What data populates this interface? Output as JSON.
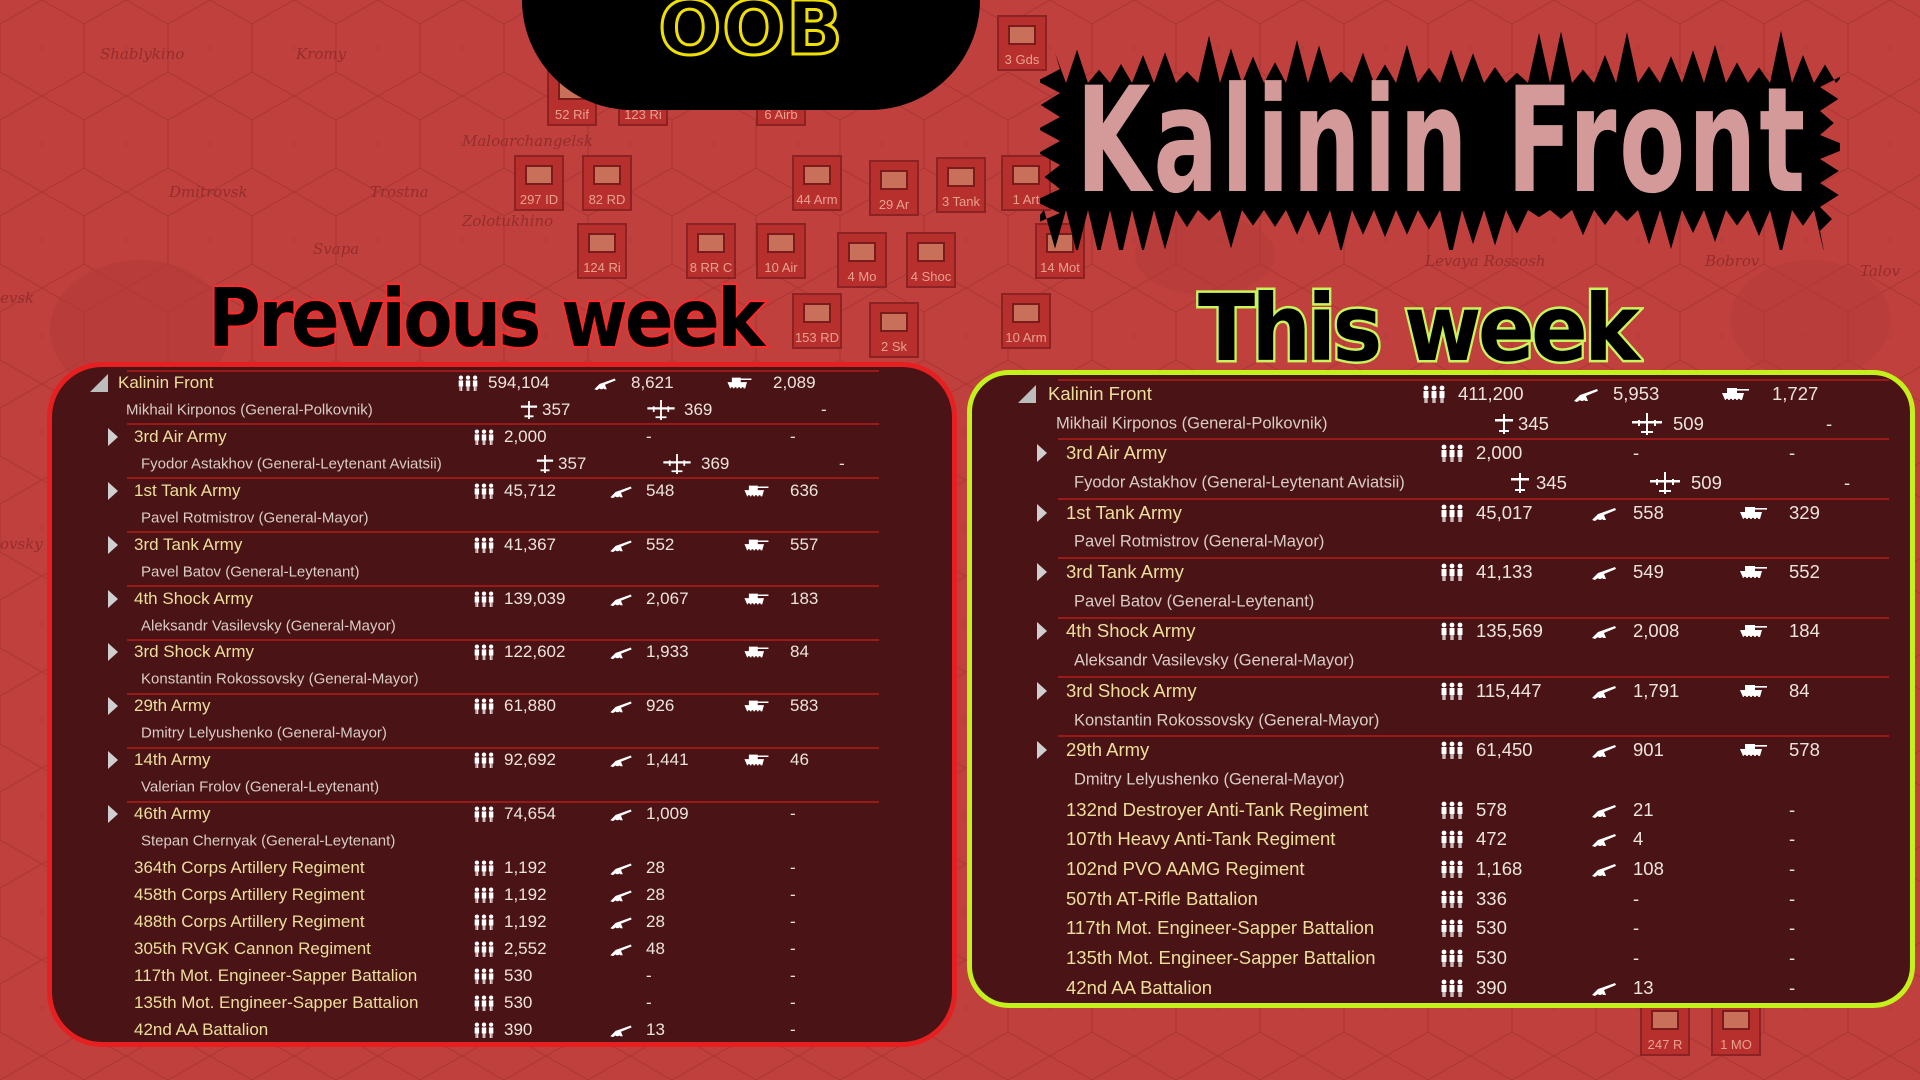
{
  "header": {
    "tab_label": "OOB",
    "title": "Kalinin Front"
  },
  "map": {
    "places": [
      "Shablykino",
      "Kromy",
      "Maloarchangelsk",
      "Dmitrovsk",
      "Trostna",
      "Zolotukhino",
      "Svapa",
      "evsk",
      "ovsky",
      "Levaya Rossosh",
      "Bobrov",
      "Talov"
    ],
    "counters": [
      "52 Rif",
      "123 Ri",
      "6 Airb",
      "3 Gds",
      "44 Arm",
      "29 Ar",
      "3 Tank",
      "1 Art",
      "297 ID",
      "82 RD",
      "124 Ri",
      "8 RR C",
      "10 Air",
      "4 Mo",
      "4 Shoc",
      "14 Mot",
      "153 RD",
      "2 Sk",
      "10 Arm",
      "247 R",
      "1 MO"
    ]
  },
  "colors": {
    "previous_border": "#e62020",
    "current_border": "#c4f01c",
    "panel_bg": "#4a1416",
    "unit_name": "#ecdf9c",
    "map_bg": "#c0403d",
    "oob_outline": "#f0e000"
  },
  "icons": {
    "men": "soldiers-icon",
    "guns": "artillery-icon",
    "tanks": "tank-icon",
    "fighters": "fighter-plane-icon",
    "bombers": "bomber-plane-icon",
    "expand": "expand-triangle-icon"
  },
  "panels": {
    "previous": {
      "label": "Previous week",
      "front": {
        "name": "Kalinin Front",
        "men": "594,104",
        "guns": "8,621",
        "tanks": "2,089",
        "leader": "Mikhail Kirponos  (General-Polkovnik)",
        "fighters": "357",
        "bombers": "369",
        "other": "-"
      },
      "units": [
        {
          "name": "3rd Air Army",
          "expandable": true,
          "men": "2,000",
          "guns": "-",
          "tanks": "-",
          "leader": "Fyodor Astakhov  (General-Leytenant Aviatsii)",
          "fighters": "357",
          "bombers": "369",
          "other": "-"
        },
        {
          "name": "1st Tank Army",
          "expandable": true,
          "men": "45,712",
          "guns": "548",
          "tanks": "636",
          "leader": "Pavel Rotmistrov  (General-Mayor)"
        },
        {
          "name": "3rd Tank Army",
          "expandable": true,
          "men": "41,367",
          "guns": "552",
          "tanks": "557",
          "leader": "Pavel Batov  (General-Leytenant)"
        },
        {
          "name": "4th Shock Army",
          "expandable": true,
          "men": "139,039",
          "guns": "2,067",
          "tanks": "183",
          "leader": "Aleksandr Vasilevsky  (General-Mayor)"
        },
        {
          "name": "3rd Shock Army",
          "expandable": true,
          "men": "122,602",
          "guns": "1,933",
          "tanks": "84",
          "leader": "Konstantin Rokossovsky  (General-Mayor)"
        },
        {
          "name": "29th Army",
          "expandable": true,
          "men": "61,880",
          "guns": "926",
          "tanks": "583",
          "leader": "Dmitry Lelyushenko  (General-Mayor)"
        },
        {
          "name": "14th Army",
          "expandable": true,
          "men": "92,692",
          "guns": "1,441",
          "tanks": "46",
          "leader": "Valerian Frolov  (General-Leytenant)"
        },
        {
          "name": "46th Army",
          "expandable": true,
          "men": "74,654",
          "guns": "1,009",
          "tanks": "-",
          "leader": "Stepan Chernyak  (General-Leytenant)"
        },
        {
          "name": "364th Corps Artillery Regiment",
          "men": "1,192",
          "guns": "28",
          "tanks": "-"
        },
        {
          "name": "458th Corps Artillery Regiment",
          "men": "1,192",
          "guns": "28",
          "tanks": "-"
        },
        {
          "name": "488th Corps Artillery Regiment",
          "men": "1,192",
          "guns": "28",
          "tanks": "-"
        },
        {
          "name": "305th RVGK Cannon Regiment",
          "men": "2,552",
          "guns": "48",
          "tanks": "-"
        },
        {
          "name": "117th Mot. Engineer-Sapper Battalion",
          "men": "530",
          "guns": "-",
          "tanks": "-"
        },
        {
          "name": "135th Mot. Engineer-Sapper Battalion",
          "men": "530",
          "guns": "-",
          "tanks": "-"
        },
        {
          "name": "42nd AA Battalion",
          "men": "390",
          "guns": "13",
          "tanks": "-"
        }
      ]
    },
    "current": {
      "label": "This week",
      "front": {
        "name": "Kalinin Front",
        "men": "411,200",
        "guns": "5,953",
        "tanks": "1,727",
        "leader": "Mikhail Kirponos  (General-Polkovnik)",
        "fighters": "345",
        "bombers": "509",
        "other": "-"
      },
      "units": [
        {
          "name": "3rd Air Army",
          "expandable": true,
          "men": "2,000",
          "guns": "-",
          "tanks": "-",
          "leader": "Fyodor Astakhov  (General-Leytenant Aviatsii)",
          "fighters": "345",
          "bombers": "509",
          "other": "-"
        },
        {
          "name": "1st Tank Army",
          "expandable": true,
          "men": "45,017",
          "guns": "558",
          "tanks": "329",
          "leader": "Pavel Rotmistrov  (General-Mayor)"
        },
        {
          "name": "3rd Tank Army",
          "expandable": true,
          "men": "41,133",
          "guns": "549",
          "tanks": "552",
          "leader": "Pavel Batov  (General-Leytenant)"
        },
        {
          "name": "4th Shock Army",
          "expandable": true,
          "men": "135,569",
          "guns": "2,008",
          "tanks": "184",
          "leader": "Aleksandr Vasilevsky  (General-Mayor)"
        },
        {
          "name": "3rd Shock Army",
          "expandable": true,
          "men": "115,447",
          "guns": "1,791",
          "tanks": "84",
          "leader": "Konstantin Rokossovsky  (General-Mayor)"
        },
        {
          "name": "29th Army",
          "expandable": true,
          "men": "61,450",
          "guns": "901",
          "tanks": "578",
          "leader": "Dmitry Lelyushenko  (General-Mayor)"
        },
        {
          "name": "132nd Destroyer Anti-Tank Regiment",
          "men": "578",
          "guns": "21",
          "tanks": "-"
        },
        {
          "name": "107th Heavy Anti-Tank Regiment",
          "men": "472",
          "guns": "4",
          "tanks": "-"
        },
        {
          "name": "102nd PVO AAMG Regiment",
          "men": "1,168",
          "guns": "108",
          "tanks": "-"
        },
        {
          "name": "507th AT-Rifle Battalion",
          "men": "336",
          "guns": "-",
          "tanks": "-"
        },
        {
          "name": "117th Mot. Engineer-Sapper Battalion",
          "men": "530",
          "guns": "-",
          "tanks": "-"
        },
        {
          "name": "135th Mot. Engineer-Sapper Battalion",
          "men": "530",
          "guns": "-",
          "tanks": "-"
        },
        {
          "name": "42nd AA Battalion",
          "men": "390",
          "guns": "13",
          "tanks": "-"
        }
      ]
    }
  }
}
